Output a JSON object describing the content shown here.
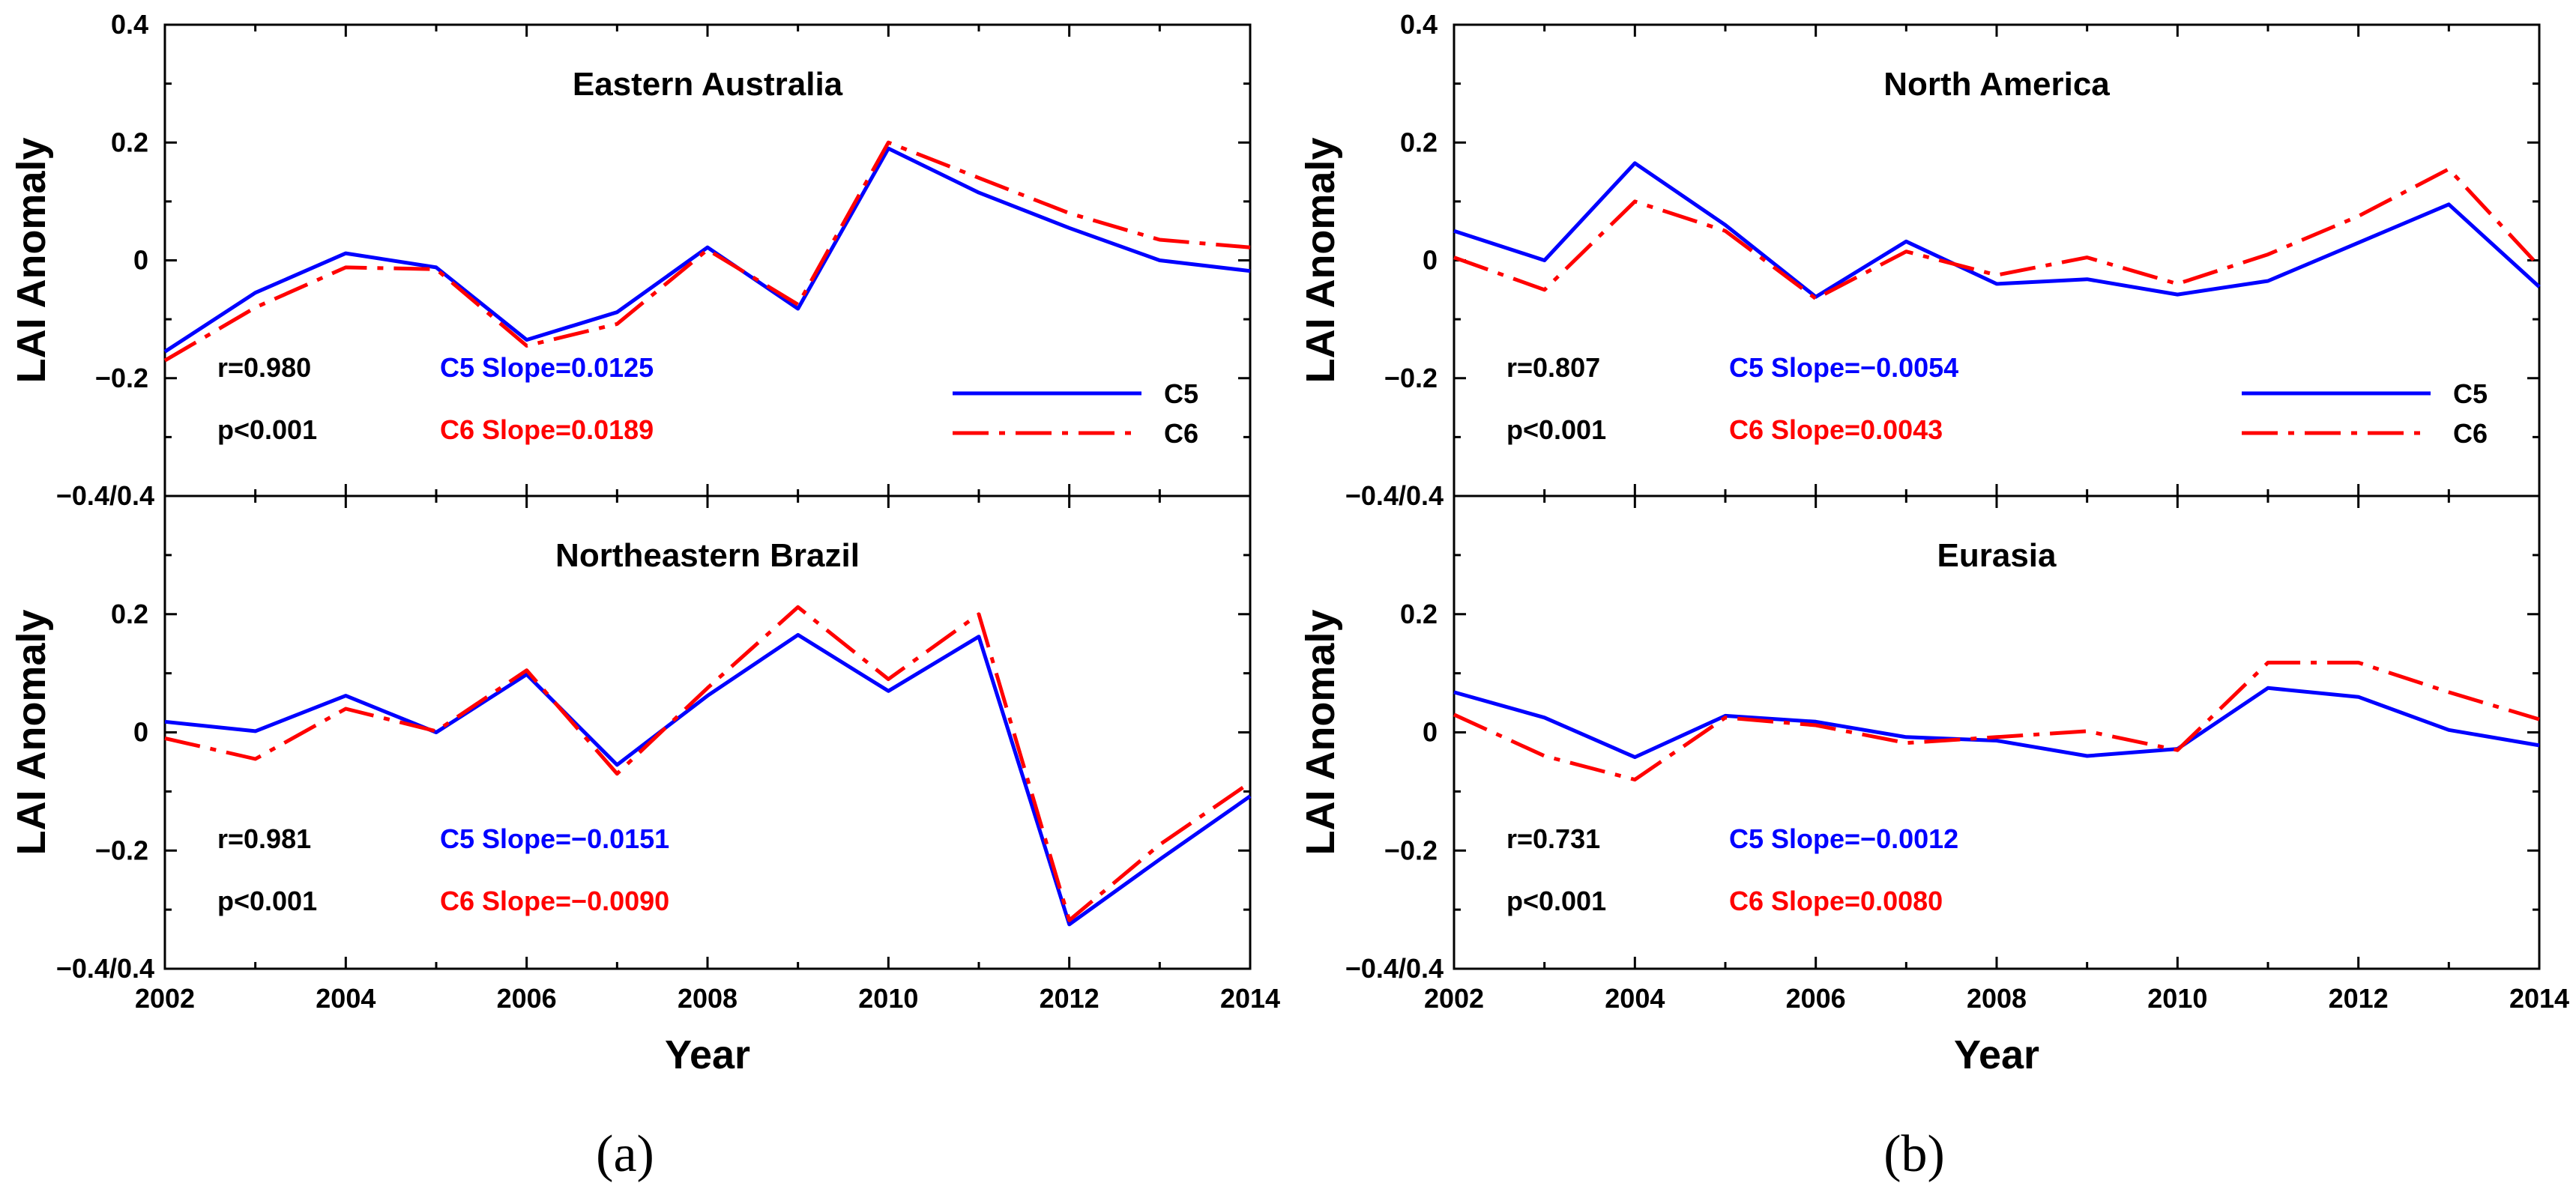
{
  "figure": {
    "ylabel": "LAI Anomaly",
    "xlabel": "Year",
    "panel_labels": [
      "(a)",
      "(b)"
    ]
  },
  "colors": {
    "c5": "#0000ff",
    "c6": "#ff0000",
    "text": "#000000"
  },
  "chart_data": [
    {
      "type": "line",
      "title": "Eastern Australia",
      "x": [
        2002,
        2003,
        2004,
        2005,
        2006,
        2007,
        2008,
        2009,
        2010,
        2011,
        2012,
        2013,
        2014
      ],
      "ylim": [
        -0.4,
        0.4
      ],
      "xlim": [
        2002,
        2014
      ],
      "series": [
        {
          "name": "C5",
          "values": [
            -0.155,
            -0.055,
            0.012,
            -0.012,
            -0.135,
            -0.088,
            0.022,
            -0.082,
            0.19,
            0.115,
            0.055,
            0.0,
            -0.018
          ]
        },
        {
          "name": "C6",
          "values": [
            -0.17,
            -0.08,
            -0.012,
            -0.015,
            -0.145,
            -0.108,
            0.018,
            -0.075,
            0.2,
            0.14,
            0.08,
            0.035,
            0.022
          ]
        }
      ],
      "stats": {
        "r": "r=0.980",
        "p": "p<0.001",
        "c5_slope": "C5 Slope=0.0125",
        "c6_slope": "C6 Slope=0.0189"
      },
      "legend": true
    },
    {
      "type": "line",
      "title": "North America",
      "x": [
        2002,
        2003,
        2004,
        2005,
        2006,
        2007,
        2008,
        2009,
        2010,
        2011,
        2012,
        2013,
        2014
      ],
      "ylim": [
        -0.4,
        0.4
      ],
      "xlim": [
        2002,
        2014
      ],
      "series": [
        {
          "name": "C5",
          "values": [
            0.05,
            0.0,
            0.165,
            0.06,
            -0.062,
            0.032,
            -0.04,
            -0.032,
            -0.058,
            -0.035,
            0.03,
            0.095,
            -0.045
          ]
        },
        {
          "name": "C6",
          "values": [
            0.005,
            -0.05,
            0.1,
            0.05,
            -0.065,
            0.015,
            -0.025,
            0.005,
            -0.04,
            0.01,
            0.075,
            0.155,
            -0.01
          ]
        }
      ],
      "stats": {
        "r": "r=0.807",
        "p": "p<0.001",
        "c5_slope": "C5 Slope=−0.0054",
        "c6_slope": "C6 Slope=0.0043"
      },
      "legend": true
    },
    {
      "type": "line",
      "title": "Northeastern Brazil",
      "x": [
        2002,
        2003,
        2004,
        2005,
        2006,
        2007,
        2008,
        2009,
        2010,
        2011,
        2012,
        2013,
        2014
      ],
      "ylim": [
        -0.4,
        0.4
      ],
      "xlim": [
        2002,
        2014
      ],
      "series": [
        {
          "name": "C5",
          "values": [
            0.018,
            0.002,
            0.062,
            0.0,
            0.098,
            -0.055,
            0.062,
            0.165,
            0.07,
            0.162,
            -0.325,
            -0.215,
            -0.108
          ]
        },
        {
          "name": "C6",
          "values": [
            -0.01,
            -0.045,
            0.04,
            0.002,
            0.105,
            -0.07,
            0.075,
            0.212,
            0.09,
            0.2,
            -0.318,
            -0.19,
            -0.085
          ]
        }
      ],
      "stats": {
        "r": "r=0.981",
        "p": "p<0.001",
        "c5_slope": "C5 Slope=−0.0151",
        "c6_slope": "C6 Slope=−0.0090"
      },
      "legend": false
    },
    {
      "type": "line",
      "title": "Eurasia",
      "x": [
        2002,
        2003,
        2004,
        2005,
        2006,
        2007,
        2008,
        2009,
        2010,
        2011,
        2012,
        2013,
        2014
      ],
      "ylim": [
        -0.4,
        0.4
      ],
      "xlim": [
        2002,
        2014
      ],
      "series": [
        {
          "name": "C5",
          "values": [
            0.068,
            0.025,
            -0.042,
            0.028,
            0.018,
            -0.008,
            -0.014,
            -0.04,
            -0.028,
            0.075,
            0.06,
            0.004,
            -0.022
          ]
        },
        {
          "name": "C6",
          "values": [
            0.03,
            -0.04,
            -0.08,
            0.025,
            0.012,
            -0.018,
            -0.008,
            0.002,
            -0.03,
            0.118,
            0.118,
            0.068,
            0.022
          ]
        }
      ],
      "stats": {
        "r": "r=0.731",
        "p": "p<0.001",
        "c5_slope": "C5 Slope=−0.0012",
        "c6_slope": "C6 Slope=0.0080"
      },
      "legend": false
    }
  ],
  "axes": {
    "y_ticks": [
      {
        "value": 0.4,
        "label": "0.4"
      },
      {
        "value": 0.2,
        "label": "0.2"
      },
      {
        "value": 0.0,
        "label": "0"
      },
      {
        "value": -0.2,
        "label": "−0.2"
      }
    ],
    "y_shared_label": "−0.4/0.4",
    "y_bottom_label": "−0.4/0.4",
    "bottom_y_ticks": [
      {
        "value": 0.2,
        "label": "0.2"
      },
      {
        "value": 0.0,
        "label": "0"
      },
      {
        "value": -0.2,
        "label": "−0.2"
      }
    ],
    "x_ticks": [
      {
        "value": 2002,
        "label": "2002"
      },
      {
        "value": 2004,
        "label": "2004"
      },
      {
        "value": 2006,
        "label": "2006"
      },
      {
        "value": 2008,
        "label": "2008"
      },
      {
        "value": 2010,
        "label": "2010"
      },
      {
        "value": 2012,
        "label": "2012"
      },
      {
        "value": 2014,
        "label": "2014"
      }
    ]
  }
}
